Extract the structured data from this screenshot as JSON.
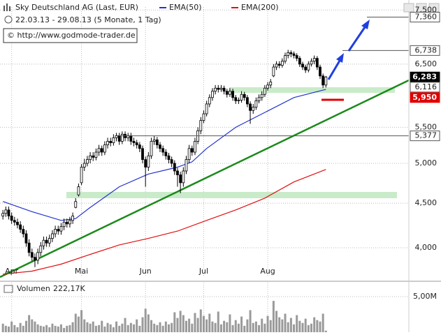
{
  "chart_data": {
    "type": "candlestick",
    "title": "Sky Deutschland AG (Last, EUR)",
    "subtitle": "22.03.13 - 29.08.13 (5 Monate, 1 Tag)",
    "source": "© http://www.godmode-trader.de",
    "log": true,
    "grid": true,
    "ylim": [
      3715,
      7560
    ],
    "yticks": [
      {
        "value": 4000,
        "label": "4,000"
      },
      {
        "value": 4500,
        "label": "4,500"
      },
      {
        "value": 5000,
        "label": "5,000"
      },
      {
        "value": 5500,
        "label": "5,500"
      },
      {
        "value": 6500,
        "label": "6,500"
      },
      {
        "value": 7500,
        "label": "7,500"
      }
    ],
    "xlim": [
      -1,
      139.5
    ],
    "xticks": [
      {
        "value": 3,
        "label": "Apr"
      },
      {
        "value": 27,
        "label": "Mai"
      },
      {
        "value": 49,
        "label": "Jun"
      },
      {
        "value": 69,
        "label": "Jul"
      },
      {
        "value": 91,
        "label": "Aug"
      }
    ],
    "up_color": "#ffffff",
    "down_color": "#000000",
    "ohlc": [
      [
        4350,
        4420,
        4310,
        4380
      ],
      [
        4380,
        4460,
        4340,
        4420
      ],
      [
        4420,
        4460,
        4310,
        4350
      ],
      [
        4350,
        4390,
        4260,
        4300
      ],
      [
        4300,
        4340,
        4240,
        4280
      ],
      [
        4280,
        4320,
        4210,
        4250
      ],
      [
        4250,
        4290,
        4160,
        4200
      ],
      [
        4200,
        4240,
        4110,
        4150
      ],
      [
        4150,
        4190,
        4010,
        4050
      ],
      [
        4050,
        4090,
        3910,
        3950
      ],
      [
        3950,
        3990,
        3860,
        3900
      ],
      [
        3900,
        3940,
        3800,
        3870
      ],
      [
        3870,
        3990,
        3830,
        3950
      ],
      [
        3950,
        4060,
        3910,
        4020
      ],
      [
        4020,
        4120,
        3980,
        4080
      ],
      [
        4080,
        4120,
        4010,
        4050
      ],
      [
        4050,
        4140,
        4010,
        4100
      ],
      [
        4100,
        4190,
        4060,
        4150
      ],
      [
        4150,
        4240,
        4110,
        4200
      ],
      [
        4200,
        4240,
        4140,
        4180
      ],
      [
        4180,
        4270,
        4140,
        4230
      ],
      [
        4230,
        4320,
        4190,
        4280
      ],
      [
        4280,
        4320,
        4220,
        4260
      ],
      [
        4260,
        4340,
        4220,
        4300
      ],
      [
        4300,
        4390,
        4260,
        4350
      ],
      [
        4450,
        4560,
        4440,
        4520
      ],
      [
        4600,
        4740,
        4580,
        4700
      ],
      [
        4750,
        4990,
        4720,
        4950
      ],
      [
        4950,
        5060,
        4900,
        5000
      ],
      [
        5000,
        5100,
        4960,
        5050
      ],
      [
        5050,
        5150,
        5000,
        5100
      ],
      [
        5100,
        5150,
        5030,
        5080
      ],
      [
        5080,
        5200,
        5040,
        5150
      ],
      [
        5150,
        5250,
        5100,
        5200
      ],
      [
        5200,
        5240,
        5100,
        5150
      ],
      [
        5150,
        5300,
        5110,
        5250
      ],
      [
        5250,
        5350,
        5200,
        5300
      ],
      [
        5300,
        5350,
        5230,
        5280
      ],
      [
        5280,
        5400,
        5240,
        5350
      ],
      [
        5350,
        5420,
        5300,
        5380
      ],
      [
        5380,
        5420,
        5250,
        5300
      ],
      [
        5300,
        5440,
        5260,
        5400
      ],
      [
        5400,
        5440,
        5300,
        5350
      ],
      [
        5350,
        5420,
        5300,
        5380
      ],
      [
        5380,
        5420,
        5250,
        5300
      ],
      [
        5300,
        5350,
        5230,
        5280
      ],
      [
        5280,
        5320,
        5200,
        5250
      ],
      [
        5250,
        5290,
        5150,
        5200
      ],
      [
        5200,
        5240,
        5000,
        5050
      ],
      [
        5050,
        5090,
        4700,
        4950
      ],
      [
        4950,
        5150,
        4900,
        5100
      ],
      [
        5100,
        5350,
        5060,
        5300
      ],
      [
        5300,
        5380,
        5250,
        5320
      ],
      [
        5320,
        5360,
        5200,
        5250
      ],
      [
        5250,
        5290,
        5150,
        5200
      ],
      [
        5200,
        5240,
        5100,
        5150
      ],
      [
        5150,
        5190,
        5050,
        5100
      ],
      [
        5100,
        5140,
        5000,
        5050
      ],
      [
        5050,
        5090,
        4950,
        5000
      ],
      [
        5000,
        5040,
        4850,
        4900
      ],
      [
        4900,
        4940,
        4700,
        4850
      ],
      [
        4850,
        4890,
        4620,
        4750
      ],
      [
        4750,
        4950,
        4700,
        4900
      ],
      [
        4900,
        5100,
        4860,
        5050
      ],
      [
        5050,
        5250,
        5000,
        5200
      ],
      [
        5200,
        5240,
        5100,
        5150
      ],
      [
        5150,
        5350,
        5110,
        5300
      ],
      [
        5300,
        5500,
        5260,
        5450
      ],
      [
        5450,
        5650,
        5400,
        5600
      ],
      [
        5600,
        5750,
        5560,
        5700
      ],
      [
        5700,
        5900,
        5660,
        5850
      ],
      [
        5850,
        6000,
        5800,
        5950
      ],
      [
        5950,
        6100,
        5900,
        6050
      ],
      [
        6050,
        6150,
        6000,
        6100
      ],
      [
        6100,
        6150,
        6030,
        6080
      ],
      [
        6080,
        6150,
        6040,
        6100
      ],
      [
        6100,
        6140,
        6000,
        6050
      ],
      [
        6050,
        6090,
        5950,
        6000
      ],
      [
        6000,
        6100,
        5960,
        6050
      ],
      [
        6050,
        6090,
        5900,
        5950
      ],
      [
        5950,
        5990,
        5850,
        5900
      ],
      [
        5900,
        5950,
        5850,
        5910
      ],
      [
        5910,
        6050,
        5870,
        6000
      ],
      [
        6000,
        6040,
        5900,
        5950
      ],
      [
        5950,
        5990,
        5800,
        5850
      ],
      [
        5850,
        5890,
        5550,
        5750
      ],
      [
        5750,
        5850,
        5700,
        5800
      ],
      [
        5800,
        5950,
        5760,
        5900
      ],
      [
        5900,
        6000,
        5860,
        5950
      ],
      [
        5950,
        6050,
        5900,
        6000
      ],
      [
        6000,
        6150,
        5960,
        6100
      ],
      [
        6100,
        6200,
        6060,
        6150
      ],
      [
        6150,
        6250,
        6100,
        6200
      ],
      [
        6300,
        6500,
        6280,
        6450
      ],
      [
        6450,
        6550,
        6400,
        6500
      ],
      [
        6500,
        6550,
        6430,
        6480
      ],
      [
        6480,
        6600,
        6440,
        6550
      ],
      [
        6550,
        6700,
        6510,
        6650
      ],
      [
        6650,
        6750,
        6600,
        6700
      ],
      [
        6700,
        6740,
        6620,
        6680
      ],
      [
        6680,
        6720,
        6600,
        6650
      ],
      [
        6650,
        6690,
        6550,
        6600
      ],
      [
        6600,
        6640,
        6450,
        6500
      ],
      [
        6500,
        6540,
        6400,
        6450
      ],
      [
        6450,
        6490,
        6350,
        6400
      ],
      [
        6400,
        6550,
        6360,
        6500
      ],
      [
        6500,
        6600,
        6460,
        6550
      ],
      [
        6550,
        6650,
        6500,
        6600
      ],
      [
        6600,
        6640,
        6400,
        6450
      ],
      [
        6450,
        6490,
        6250,
        6300
      ],
      [
        6300,
        6340,
        6100,
        6150
      ],
      [
        6150,
        6300,
        6110,
        6283
      ]
    ],
    "series": [
      {
        "name": "EMA(50)",
        "color": "#2233cc",
        "x": [
          0,
          10,
          20,
          25,
          30,
          40,
          50,
          60,
          65,
          70,
          80,
          90,
          100,
          111
        ],
        "values": [
          4520,
          4400,
          4300,
          4320,
          4450,
          4700,
          4860,
          4950,
          5020,
          5200,
          5500,
          5720,
          5950,
          6080
        ]
      },
      {
        "name": "EMA(200)",
        "color": "#e01010",
        "x": [
          0,
          10,
          20,
          30,
          40,
          50,
          60,
          70,
          80,
          90,
          100,
          111
        ],
        "values": [
          3730,
          3760,
          3830,
          3930,
          4030,
          4100,
          4180,
          4300,
          4420,
          4560,
          4760,
          4920
        ]
      }
    ],
    "levels": [
      {
        "value": 7360,
        "label": "7,360",
        "bg": "#ffffff"
      },
      {
        "value": 6738,
        "label": "6,738",
        "bg": "#ffffff"
      },
      {
        "value": 6283,
        "label": "6,283",
        "bg": "#000000"
      },
      {
        "value": 6116,
        "label": "6,116",
        "bg": "#ffffff"
      },
      {
        "value": 5950,
        "label": "5,950",
        "bg": "#e00000"
      },
      {
        "value": 5377,
        "label": "5,377",
        "bg": "#ffffff"
      }
    ],
    "volume": {
      "name": "Volumen",
      "last_label": "222,17K",
      "color": "#9a9a9a",
      "ylim": [
        0,
        6960000
      ],
      "yticks": [
        {
          "value": 5000000,
          "label": "5,00M"
        }
      ],
      "values": [
        1200000,
        900000,
        800000,
        1500000,
        1000000,
        700000,
        1300000,
        900000,
        1600000,
        2400000,
        1800000,
        1500000,
        1100000,
        900000,
        800000,
        1000000,
        700000,
        1200000,
        900000,
        800000,
        1100000,
        600000,
        900000,
        1000000,
        1400000,
        2600000,
        2200000,
        3100000,
        1800000,
        1400000,
        1200000,
        1500000,
        900000,
        1000000,
        1600000,
        800000,
        1300000,
        1100000,
        700000,
        1500000,
        900000,
        1200000,
        2000000,
        1000000,
        1300000,
        1100000,
        1800000,
        900000,
        2100000,
        3300000,
        2500000,
        1700000,
        1200000,
        1000000,
        1400000,
        900000,
        1500000,
        1100000,
        1300000,
        2800000,
        2000000,
        3000000,
        2400000,
        1600000,
        1900000,
        1200000,
        2700000,
        2000000,
        3200000,
        2300000,
        1800000,
        2600000,
        1500000,
        1300000,
        2900000,
        1100000,
        1600000,
        1400000,
        2500000,
        1000000,
        1700000,
        1200000,
        2200000,
        900000,
        1800000,
        3100000,
        1300000,
        1500000,
        1000000,
        1900000,
        1200000,
        2300000,
        1700000,
        4400000,
        3000000,
        2100000,
        1800000,
        2600000,
        1400000,
        2000000,
        1100000,
        2400000,
        1600000,
        1300000,
        1900000,
        1000000,
        1200000,
        2100000,
        1700000,
        1500000,
        2600000,
        222170
      ]
    }
  }
}
